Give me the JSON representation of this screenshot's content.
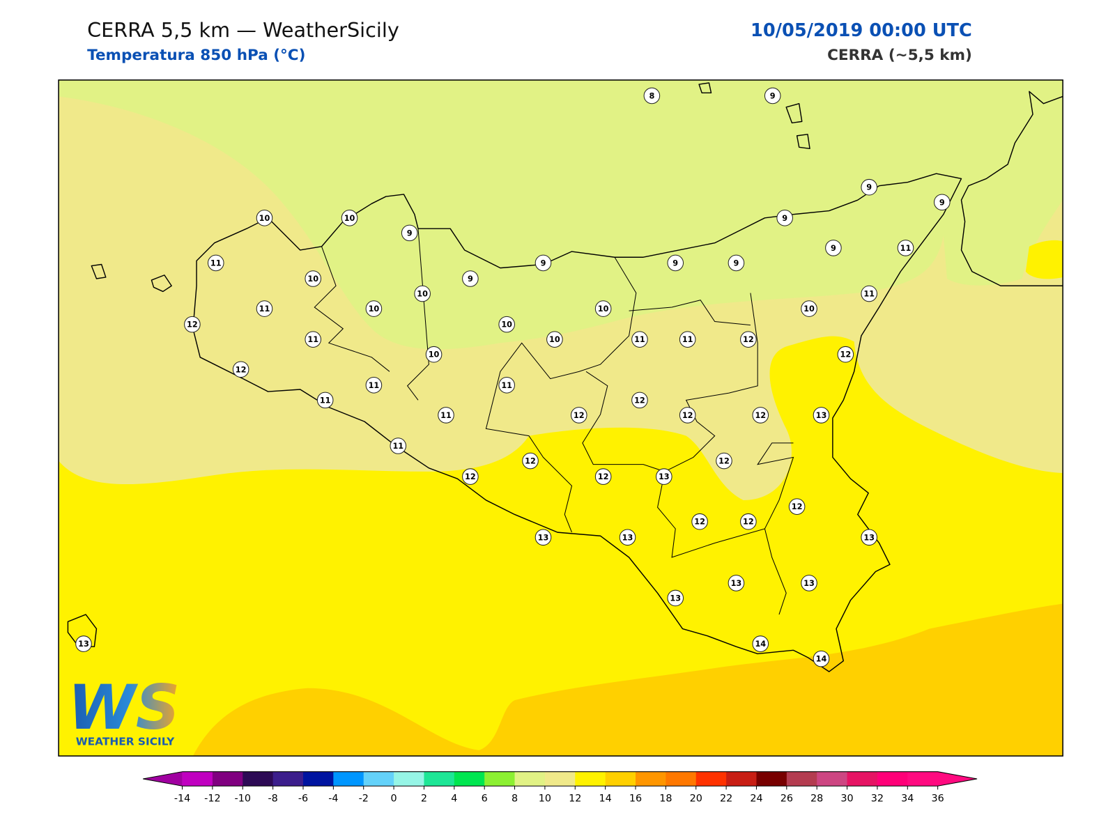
{
  "header": {
    "title": "CERRA 5,5 km — WeatherSicily",
    "subtitle": "Temperatura 850 hPa (°C)",
    "datetime": "10/05/2019 00:00 UTC",
    "model": "CERRA (~5,5 km)"
  },
  "stations": [
    8,
    9,
    9,
    9,
    10,
    10,
    9,
    9,
    11,
    9,
    9,
    9,
    9,
    11,
    10,
    9,
    10,
    11,
    11,
    10,
    10,
    10,
    12,
    10,
    11,
    10,
    11,
    11,
    12,
    10,
    12,
    12,
    11,
    11,
    11,
    11,
    12,
    12,
    12,
    12,
    13,
    11,
    12,
    12,
    12,
    12,
    13,
    12,
    12,
    12,
    13,
    13,
    13,
    13,
    13,
    13,
    13,
    14,
    14
  ],
  "colorbar": {
    "ticks": [
      -14,
      -12,
      -10,
      -8,
      -6,
      -4,
      -2,
      0,
      2,
      4,
      6,
      8,
      10,
      12,
      14,
      16,
      18,
      20,
      22,
      24,
      26,
      28,
      30,
      32,
      34,
      36
    ],
    "under_color": "#a000a0",
    "over_color": "#ff0a80",
    "colors": [
      "#c000c0",
      "#800080",
      "#2d0a55",
      "#3c1e8c",
      "#0014a0",
      "#0096ff",
      "#64d2fa",
      "#96f5e6",
      "#1ee696",
      "#00e650",
      "#8cf032",
      "#e1f285",
      "#f0e98a",
      "#fff200",
      "#ffd000",
      "#ff9600",
      "#ff7800",
      "#ff3200",
      "#c81e14",
      "#780000",
      "#b43c50",
      "#cd4682",
      "#e61464",
      "#ff0078",
      "#ff0a80"
    ]
  },
  "logo": {
    "letters": "WS",
    "name": "WEATHER SICILY"
  }
}
